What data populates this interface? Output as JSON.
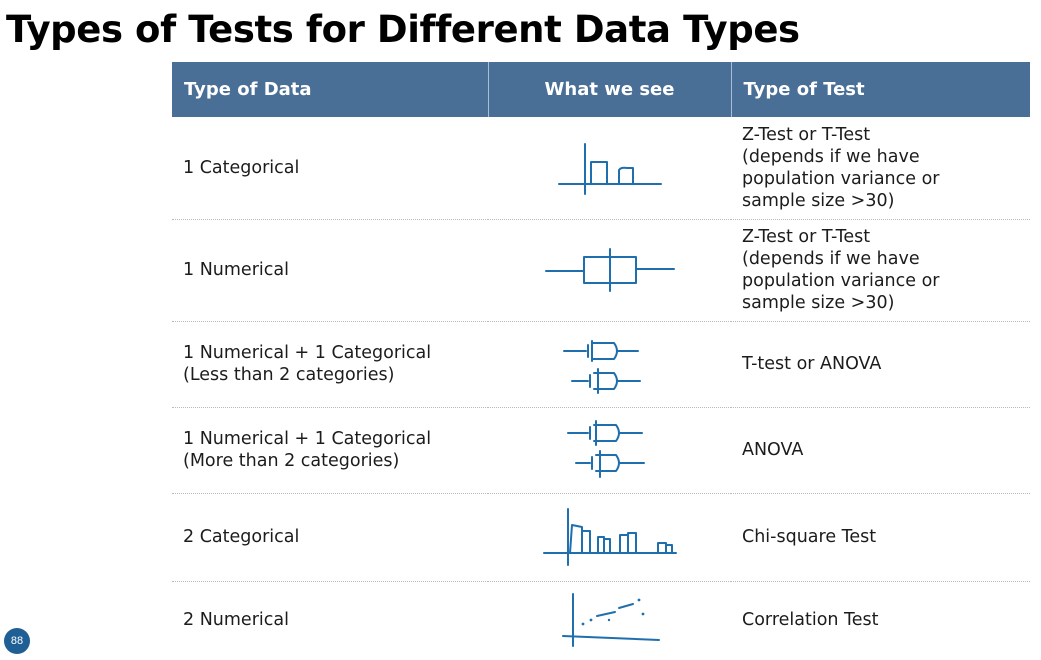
{
  "title": "Types of Tests for Different Data Types",
  "page_number": "88",
  "colors": {
    "header_bg": "#4a6f97",
    "sketch_ink": "#1f6fae",
    "badge": "#1f5f96"
  },
  "table": {
    "headers": [
      "Type of Data",
      "What we see",
      "Type of Test"
    ],
    "rows": [
      {
        "data_type": "1 Categorical",
        "sketch_icon": "bar-chart-sketch-icon",
        "test": "Z-Test or T-Test\n(depends if we have\npopulation variance or\nsample size >30)"
      },
      {
        "data_type": "1 Numerical",
        "sketch_icon": "boxplot-sketch-icon",
        "test": "Z-Test or T-Test\n(depends if we have\npopulation variance or\nsample size >30)"
      },
      {
        "data_type": "1 Numerical + 1 Categorical\n(Less than 2 categories)",
        "sketch_icon": "two-boxplots-sketch-icon",
        "test": "T-test or ANOVA"
      },
      {
        "data_type": "1 Numerical + 1 Categorical\n(More than 2 categories)",
        "sketch_icon": "two-boxplots-sketch-icon",
        "test": "ANOVA"
      },
      {
        "data_type": "2 Categorical",
        "sketch_icon": "grouped-bar-sketch-icon",
        "test": "Chi-square Test"
      },
      {
        "data_type": "2 Numerical",
        "sketch_icon": "scatter-sketch-icon",
        "test": "Correlation Test"
      }
    ]
  }
}
